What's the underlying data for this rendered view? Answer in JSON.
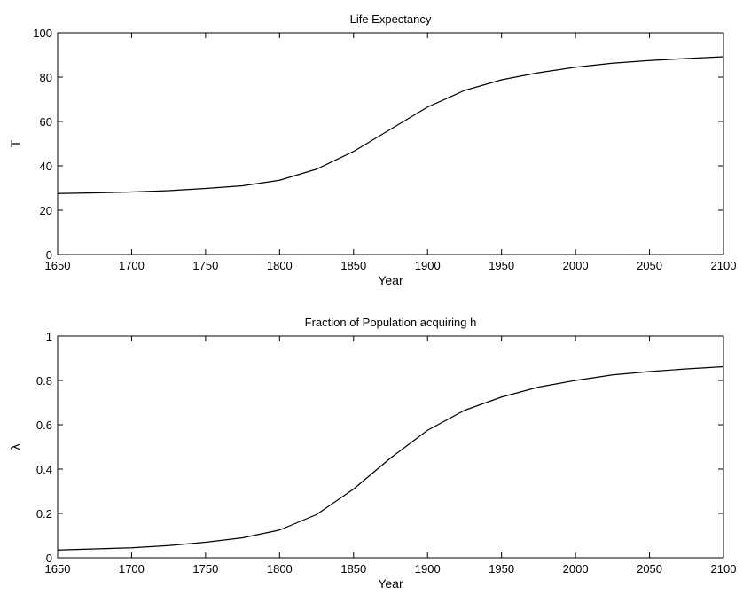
{
  "chart_data": [
    {
      "type": "line",
      "title": "Life Expectancy",
      "xlabel": "Year",
      "ylabel": "T",
      "xlim": [
        1650,
        2100
      ],
      "ylim": [
        0,
        100
      ],
      "xticks": [
        1650,
        1700,
        1750,
        1800,
        1850,
        1900,
        1950,
        2000,
        2050,
        2100
      ],
      "yticks": [
        0,
        20,
        40,
        60,
        80,
        100
      ],
      "xtick_labels": [
        "1650",
        "1700",
        "1750",
        "1800",
        "1850",
        "1900",
        "1950",
        "2000",
        "2050",
        "2100"
      ],
      "ytick_labels": [
        "0",
        "20",
        "40",
        "60",
        "80",
        "100"
      ],
      "grid": false,
      "line_color": "#000000",
      "series": [
        {
          "x": [
            1650,
            1675,
            1700,
            1725,
            1750,
            1775,
            1800,
            1825,
            1850,
            1860,
            1875,
            1900,
            1925,
            1950,
            1975,
            2000,
            2025,
            2050,
            2075,
            2100
          ],
          "values": [
            27.5,
            27.8,
            28.2,
            28.8,
            29.8,
            31.0,
            33.5,
            38.5,
            46.5,
            50.5,
            56.5,
            66.5,
            74.0,
            78.8,
            82.0,
            84.5,
            86.3,
            87.5,
            88.4,
            89.2
          ]
        }
      ]
    },
    {
      "type": "line",
      "title": "Fraction of Population acquiring h",
      "xlabel": "Year",
      "ylabel": "λ",
      "xlim": [
        1650,
        2100
      ],
      "ylim": [
        0,
        1
      ],
      "xticks": [
        1650,
        1700,
        1750,
        1800,
        1850,
        1900,
        1950,
        2000,
        2050,
        2100
      ],
      "yticks": [
        0,
        0.2,
        0.4,
        0.6,
        0.8,
        1
      ],
      "xtick_labels": [
        "1650",
        "1700",
        "1750",
        "1800",
        "1850",
        "1900",
        "1950",
        "2000",
        "2050",
        "2100"
      ],
      "ytick_labels": [
        "0",
        "0.2",
        "0.4",
        "0.6",
        "0.8",
        "1"
      ],
      "grid": false,
      "line_color": "#000000",
      "series": [
        {
          "x": [
            1650,
            1675,
            1700,
            1725,
            1750,
            1775,
            1800,
            1825,
            1850,
            1875,
            1900,
            1925,
            1950,
            1975,
            2000,
            2025,
            2050,
            2075,
            2100
          ],
          "values": [
            0.035,
            0.04,
            0.045,
            0.055,
            0.07,
            0.09,
            0.125,
            0.195,
            0.31,
            0.45,
            0.575,
            0.665,
            0.725,
            0.77,
            0.8,
            0.825,
            0.84,
            0.852,
            0.862
          ]
        }
      ]
    }
  ]
}
